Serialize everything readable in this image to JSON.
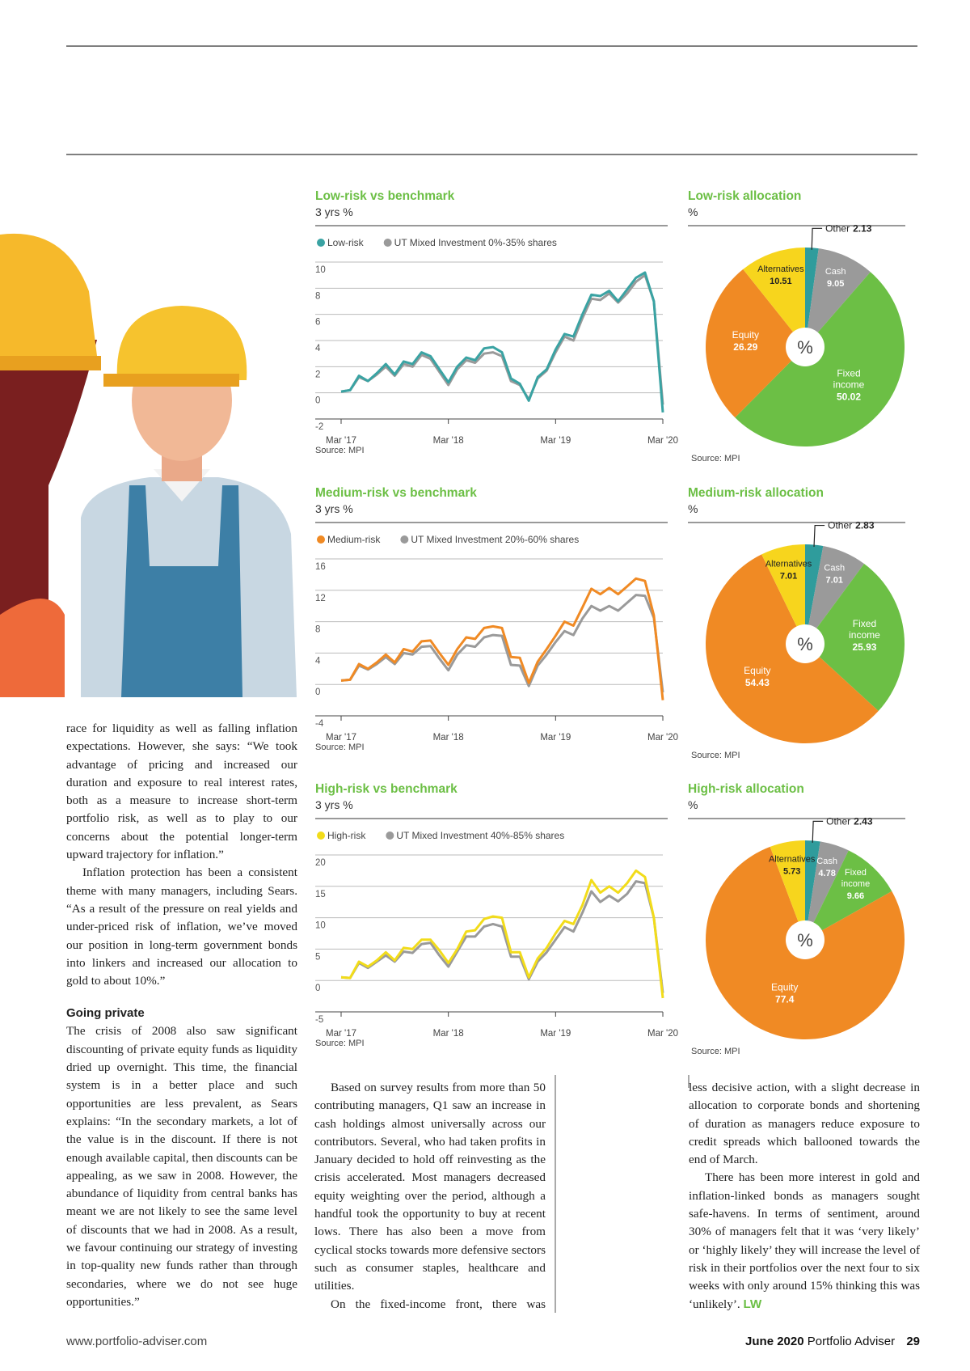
{
  "chart_data": [
    {
      "type": "line",
      "title": "Low-risk vs benchmark",
      "subtitle": "3 yrs %",
      "source": "Source: MPI",
      "categories": [
        "Mar '17",
        null,
        null,
        null,
        null,
        null,
        null,
        null,
        null,
        null,
        null,
        null,
        "Mar '18",
        null,
        null,
        null,
        null,
        null,
        null,
        null,
        null,
        null,
        null,
        null,
        "Mar '19",
        null,
        null,
        null,
        null,
        null,
        null,
        null,
        null,
        null,
        null,
        null,
        "Mar '20"
      ],
      "series": [
        {
          "name": "Low-risk",
          "color": "#3aa3a3",
          "values": [
            0.1,
            0.2,
            1.3,
            0.9,
            1.5,
            2.2,
            1.4,
            2.4,
            2.2,
            3.1,
            2.8,
            1.8,
            0.8,
            2.0,
            2.7,
            2.5,
            3.4,
            3.5,
            3.1,
            1.1,
            0.7,
            -0.6,
            1.2,
            1.8,
            3.3,
            4.5,
            4.3,
            6.0,
            7.5,
            7.4,
            7.8,
            7.0,
            7.9,
            8.8,
            9.2,
            7.0,
            -1.5
          ]
        },
        {
          "name": "UT Mixed Investment 0%-35% shares",
          "color": "#9a9a9a",
          "values": [
            0.1,
            0.2,
            1.2,
            0.9,
            1.4,
            2.0,
            1.3,
            2.2,
            2.0,
            2.9,
            2.6,
            1.6,
            0.6,
            1.8,
            2.5,
            2.3,
            3.0,
            3.1,
            2.8,
            0.9,
            0.6,
            -0.5,
            1.1,
            1.7,
            3.1,
            4.3,
            4.0,
            5.7,
            7.2,
            7.1,
            7.6,
            6.9,
            7.6,
            8.5,
            9.0,
            7.0,
            -0.9
          ]
        }
      ],
      "ylim": [
        -2,
        10
      ],
      "yticks": [
        -2,
        0,
        2,
        4,
        6,
        8,
        10
      ],
      "grid": true
    },
    {
      "type": "pie",
      "title": "Low-risk allocation",
      "subtitle": "%",
      "center_label": "%",
      "source": "Source: MPI",
      "categories": [
        "Other",
        "Cash",
        "Fixed income",
        "Equity",
        "Alternatives"
      ],
      "values": [
        2.13,
        9.05,
        50.02,
        26.29,
        10.51
      ],
      "colors": [
        "#2f9c9c",
        "#9a9a9a",
        "#6cbf45",
        "#f08a24",
        "#f7d51d"
      ]
    },
    {
      "type": "line",
      "title": "Medium-risk vs benchmark",
      "subtitle": "3 yrs %",
      "source": "Source: MPI",
      "categories": [
        "Mar '17",
        null,
        null,
        null,
        null,
        null,
        null,
        null,
        null,
        null,
        null,
        null,
        "Mar '18",
        null,
        null,
        null,
        null,
        null,
        null,
        null,
        null,
        null,
        null,
        null,
        "Mar '19",
        null,
        null,
        null,
        null,
        null,
        null,
        null,
        null,
        null,
        null,
        null,
        "Mar '20"
      ],
      "series": [
        {
          "name": "Medium-risk",
          "color": "#f08a24",
          "values": [
            0.5,
            0.6,
            2.6,
            2.0,
            2.8,
            3.8,
            2.8,
            4.5,
            4.2,
            5.5,
            5.6,
            4.0,
            2.5,
            4.5,
            6.0,
            5.8,
            7.2,
            7.4,
            7.2,
            3.5,
            3.4,
            0.2,
            2.9,
            4.5,
            6.2,
            8.0,
            7.5,
            9.8,
            12.2,
            11.5,
            12.3,
            11.5,
            12.5,
            13.5,
            13.2,
            8.8,
            -2.0
          ]
        },
        {
          "name": "UT Mixed Investment 20%-60% shares",
          "color": "#9a9a9a",
          "values": [
            0.5,
            0.6,
            2.4,
            1.9,
            2.6,
            3.5,
            2.6,
            4.0,
            3.8,
            4.8,
            4.9,
            3.3,
            1.8,
            3.8,
            5.0,
            4.8,
            6.0,
            6.3,
            6.2,
            2.5,
            2.4,
            -0.2,
            2.4,
            3.8,
            5.4,
            6.8,
            6.3,
            8.4,
            10.0,
            9.4,
            10.0,
            9.4,
            10.4,
            11.4,
            11.3,
            8.5,
            -1.0
          ]
        }
      ],
      "ylim": [
        -4,
        16
      ],
      "yticks": [
        -4,
        0,
        4,
        8,
        12,
        16
      ],
      "grid": true
    },
    {
      "type": "pie",
      "title": "Medium-risk allocation",
      "subtitle": "%",
      "center_label": "%",
      "source": "Source: MPI",
      "categories": [
        "Other",
        "Cash",
        "Fixed income",
        "Equity",
        "Alternatives"
      ],
      "values": [
        2.83,
        7.01,
        25.93,
        54.43,
        7.01
      ],
      "colors": [
        "#2f9c9c",
        "#9a9a9a",
        "#6cbf45",
        "#f08a24",
        "#f7d51d"
      ]
    },
    {
      "type": "line",
      "title": "High-risk vs benchmark",
      "subtitle": "3 yrs %",
      "source": "Source: MPI",
      "categories": [
        "Mar '17",
        null,
        null,
        null,
        null,
        null,
        null,
        null,
        null,
        null,
        null,
        null,
        "Mar '18",
        null,
        null,
        null,
        null,
        null,
        null,
        null,
        null,
        null,
        null,
        null,
        "Mar '19",
        null,
        null,
        null,
        null,
        null,
        null,
        null,
        null,
        null,
        null,
        null,
        "Mar '20"
      ],
      "series": [
        {
          "name": "High-risk",
          "color": "#f2dc1a",
          "values": [
            0.5,
            0.4,
            3.0,
            2.2,
            3.2,
            4.5,
            3.2,
            5.2,
            5.0,
            6.5,
            6.5,
            4.8,
            2.8,
            5.0,
            7.8,
            8.0,
            9.8,
            10.2,
            10.0,
            4.5,
            4.5,
            0.5,
            3.5,
            5.2,
            7.5,
            9.5,
            9.0,
            12.0,
            16.0,
            14.0,
            15.0,
            14.0,
            15.5,
            17.5,
            16.5,
            10.0,
            -2.8
          ]
        },
        {
          "name": "UT Mixed Investment 40%-85% shares",
          "color": "#9a9a9a",
          "values": [
            0.5,
            0.4,
            2.8,
            2.0,
            3.0,
            4.0,
            3.0,
            4.6,
            4.4,
            5.8,
            6.0,
            4.0,
            2.2,
            4.6,
            7.0,
            7.0,
            8.6,
            9.0,
            8.6,
            3.8,
            3.8,
            0.2,
            3.0,
            4.5,
            6.5,
            8.5,
            7.8,
            10.8,
            14.2,
            12.5,
            13.5,
            12.6,
            13.8,
            15.8,
            15.5,
            10.0,
            -2.0
          ]
        }
      ],
      "ylim": [
        -5,
        20
      ],
      "yticks": [
        -5,
        0,
        5,
        10,
        15,
        20
      ],
      "grid": true
    },
    {
      "type": "pie",
      "title": "High-risk allocation",
      "subtitle": "%",
      "center_label": "%",
      "source": "Source: MPI",
      "categories": [
        "Other",
        "Cash",
        "Fixed income",
        "Equity",
        "Alternatives"
      ],
      "values": [
        2.43,
        4.78,
        9.66,
        77.4,
        5.73
      ],
      "colors": [
        "#2f9c9c",
        "#9a9a9a",
        "#6cbf45",
        "#f08a24",
        "#f7d51d"
      ]
    }
  ],
  "article": {
    "column1": [
      "race for liquidity as well as falling inflation expectations. However, she says: “We took advantage of pricing and increased our duration and exposure to real interest rates, both as a measure to increase short-term portfolio risk, as well as to play to our concerns about the potential longer-term upward trajectory for inflation.”",
      "Inflation protection has been a consistent theme with many managers, including Sears. “As a result of the pressure on real yields and under-priced risk of inflation, we’ve moved our position in long-term government bonds into linkers and increased our allocation to gold to about 10%.”"
    ],
    "heading": "Going private",
    "column1b": [
      "The crisis of 2008 also saw significant discounting of private equity funds as liquidity dried up overnight. This time, the financial system is in a better place and such opportunities are less prevalent, as Sears explains: “In the secondary markets, a lot of the value is in the discount. If there is not enough available capital, then discounts can be appealing, as we saw in 2008. However, the abundance of liquidity from central banks has meant we are not likely to see the same level of discounts that we had in 2008. As a result, we favour continuing our strategy of investing in top-quality new funds rather than through secondaries, where we do not see huge opportunities.”"
    ],
    "column2": [
      "Based on survey results from more than 50 contributing managers, Q1 saw an increase in cash holdings almost universally across our contributors. Several, who had taken profits in January decided to hold off reinvesting as the crisis accelerated. Most managers decreased equity weighting over the period, although a handful took the opportunity to buy at recent lows. There has also been a move from cyclical stocks towards more defensive sectors such as consumer staples, healthcare and utilities.",
      "On the fixed-income front, there was"
    ],
    "column3": [
      "less decisive action, with a slight decrease in allocation to corporate bonds and shortening of duration as managers reduce exposure to credit spreads which ballooned towards the end of March.",
      "There has been more interest in gold and inflation-linked bonds as managers sought safe-havens. In terms of sentiment, around 30% of managers felt that it was ‘very likely’ or ‘highly likely’ they will increase the level of risk in their portfolios over the next four to six weeks with only around 15% thinking this was ‘unlikely’."
    ],
    "end_mark": "LW"
  },
  "footer": {
    "url": "www.portfolio-adviser.com",
    "date": "June 2020",
    "magazine": "Portfolio Adviser",
    "page": "29"
  }
}
